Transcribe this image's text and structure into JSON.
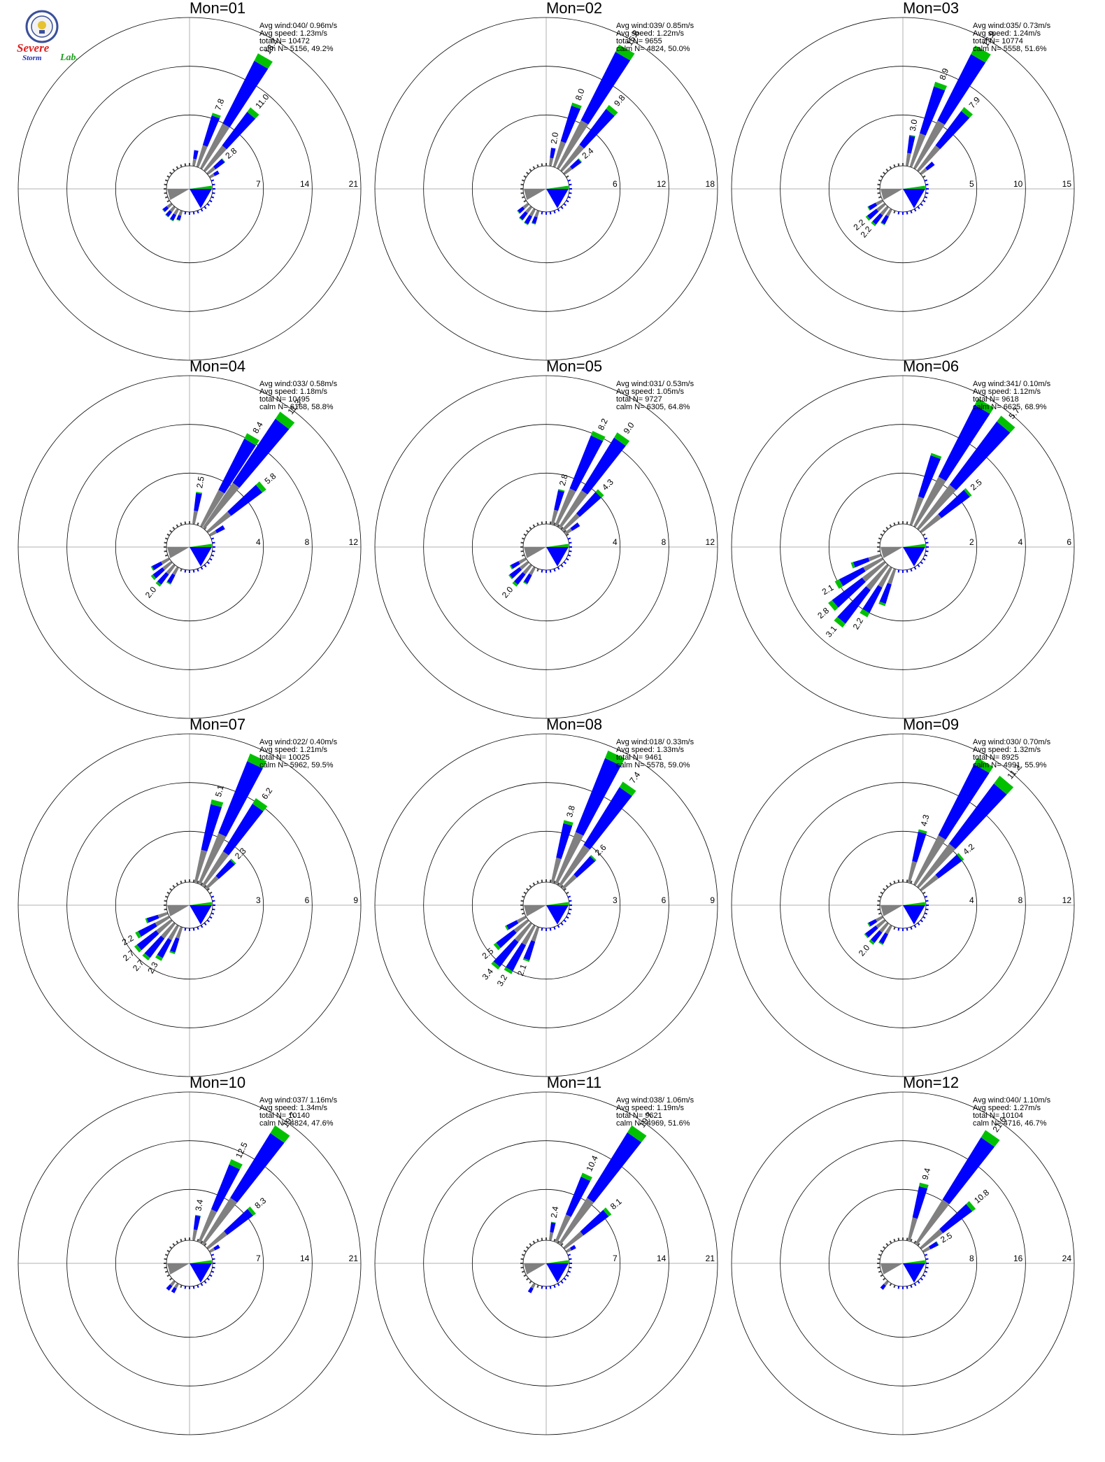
{
  "logo": {
    "line1": "Severe",
    "line2": "Storm",
    "line3": "Lab."
  },
  "colors": {
    "calm": "#808080",
    "low": "#0000ff",
    "mid": "#00c000",
    "high": "#ff0000",
    "ring": "#000000",
    "axis": "#b0b0b0"
  },
  "chart_data": [
    {
      "type": "wind-rose",
      "title": "Mon=01",
      "stats": [
        "Avg wind:040/ 0.96m/s",
        "Avg speed: 1.23m/s",
        "total N=     10472",
        "calm N=  5156,  49.2%"
      ],
      "ring_labels": [
        "7",
        "14",
        "21"
      ],
      "rmax": 21,
      "petals": [
        {
          "dir": 10,
          "value": 2.0,
          "green": 0.0
        },
        {
          "dir": 20,
          "value": 7.8,
          "green": 0.4,
          "label": "7.8"
        },
        {
          "dir": 30,
          "value": 18.2,
          "green": 1.2,
          "label": "18.2"
        },
        {
          "dir": 40,
          "value": 11.0,
          "green": 0.8,
          "label": "11.0"
        },
        {
          "dir": 50,
          "value": 2.8,
          "green": 0.1,
          "label": "2.8"
        },
        {
          "dir": 60,
          "value": 1.2,
          "green": 0.0
        },
        {
          "dir": 200,
          "value": 1.2,
          "green": 0.1
        },
        {
          "dir": 210,
          "value": 1.6,
          "green": 0.1
        },
        {
          "dir": 220,
          "value": 1.5,
          "green": 0.1
        },
        {
          "dir": 230,
          "value": 1.3,
          "green": 0.1
        }
      ]
    },
    {
      "type": "wind-rose",
      "title": "Mon=02",
      "stats": [
        "Avg wind:039/ 0.85m/s",
        "Avg speed: 1.22m/s",
        "total N=     9655",
        "calm N=  4824,  50.0%"
      ],
      "ring_labels": [
        "6",
        "12",
        "18"
      ],
      "rmax": 18,
      "petals": [
        {
          "dir": 10,
          "value": 2.0,
          "green": 0.0,
          "label": "2.0"
        },
        {
          "dir": 20,
          "value": 8.0,
          "green": 0.4,
          "label": "8.0"
        },
        {
          "dir": 30,
          "value": 16.8,
          "green": 1.0,
          "label": "16.8"
        },
        {
          "dir": 40,
          "value": 9.8,
          "green": 0.6,
          "label": "9.8"
        },
        {
          "dir": 50,
          "value": 2.4,
          "green": 0.1,
          "label": "2.4"
        },
        {
          "dir": 200,
          "value": 1.5,
          "green": 0.1
        },
        {
          "dir": 210,
          "value": 1.9,
          "green": 0.1
        },
        {
          "dir": 220,
          "value": 1.8,
          "green": 0.1
        },
        {
          "dir": 230,
          "value": 1.4,
          "green": 0.1
        }
      ]
    },
    {
      "type": "wind-rose",
      "title": "Mon=03",
      "stats": [
        "Avg wind:035/ 0.73m/s",
        "Avg speed: 1.24m/s",
        "total N=     10774",
        "calm N=  5558,  51.6%"
      ],
      "ring_labels": [
        "5",
        "10",
        "15"
      ],
      "rmax": 15,
      "petals": [
        {
          "dir": 10,
          "value": 3.0,
          "green": 0.1,
          "label": "3.0"
        },
        {
          "dir": 20,
          "value": 8.9,
          "green": 0.5,
          "label": "8.9"
        },
        {
          "dir": 30,
          "value": 13.9,
          "green": 1.0,
          "label": "13.9"
        },
        {
          "dir": 40,
          "value": 7.9,
          "green": 0.5,
          "label": "7.9"
        },
        {
          "dir": 50,
          "value": 1.5,
          "green": 0.0
        },
        {
          "dir": 210,
          "value": 1.6,
          "green": 0.1
        },
        {
          "dir": 220,
          "value": 2.2,
          "green": 0.2,
          "label": "2.2"
        },
        {
          "dir": 230,
          "value": 2.2,
          "green": 0.2,
          "label": "2.2"
        },
        {
          "dir": 240,
          "value": 1.5,
          "green": 0.1
        }
      ]
    },
    {
      "type": "wind-rose",
      "title": "Mon=04",
      "stats": [
        "Avg wind:033/ 0.58m/s",
        "Avg speed: 1.18m/s",
        "total N=     10495",
        "calm N=  6168,  58.8%"
      ],
      "ring_labels": [
        "4",
        "8",
        "12"
      ],
      "rmax": 12,
      "petals": [
        {
          "dir": 10,
          "value": 2.5,
          "green": 0.1,
          "label": "2.5"
        },
        {
          "dir": 30,
          "value": 8.4,
          "green": 0.5,
          "label": "8.4"
        },
        {
          "dir": 37,
          "value": 11.3,
          "green": 0.7,
          "label": "11.3"
        },
        {
          "dir": 50,
          "value": 5.8,
          "green": 0.4,
          "label": "5.8"
        },
        {
          "dir": 60,
          "value": 1.2,
          "green": 0.0
        },
        {
          "dir": 210,
          "value": 1.4,
          "green": 0.1
        },
        {
          "dir": 220,
          "value": 2.0,
          "green": 0.2,
          "label": "2.0"
        },
        {
          "dir": 230,
          "value": 1.9,
          "green": 0.2
        },
        {
          "dir": 240,
          "value": 1.5,
          "green": 0.1
        }
      ]
    },
    {
      "type": "wind-rose",
      "title": "Mon=05",
      "stats": [
        "Avg wind:031/ 0.53m/s",
        "Avg speed: 1.05m/s",
        "total N=     9727",
        "calm N=  6305,  64.8%"
      ],
      "ring_labels": [
        "4",
        "8",
        "12"
      ],
      "rmax": 12,
      "petals": [
        {
          "dir": 15,
          "value": 2.8,
          "green": 0.1,
          "label": "2.8"
        },
        {
          "dir": 25,
          "value": 8.2,
          "green": 0.4,
          "label": "8.2"
        },
        {
          "dir": 35,
          "value": 9.0,
          "green": 0.5,
          "label": "9.0"
        },
        {
          "dir": 45,
          "value": 4.3,
          "green": 0.3,
          "label": "4.3"
        },
        {
          "dir": 55,
          "value": 1.2,
          "green": 0.0
        },
        {
          "dir": 210,
          "value": 1.4,
          "green": 0.1
        },
        {
          "dir": 220,
          "value": 2.0,
          "green": 0.2,
          "label": "2.0"
        },
        {
          "dir": 230,
          "value": 1.8,
          "green": 0.1
        },
        {
          "dir": 240,
          "value": 1.3,
          "green": 0.1
        }
      ]
    },
    {
      "type": "wind-rose",
      "title": "Mon=06",
      "stats": [
        "Avg wind:341/ 0.10m/s",
        "Avg speed: 1.12m/s",
        "total N=     9618",
        "calm N=  6625,  68.9%"
      ],
      "ring_labels": [
        "2",
        "4",
        "6"
      ],
      "rmax": 6,
      "petals": [
        {
          "dir": 20,
          "value": 3.0,
          "green": 0.1
        },
        {
          "dir": 30,
          "value": 5.8,
          "green": 0.3
        },
        {
          "dir": 40,
          "value": 5.7,
          "green": 0.3,
          "label": "5.7"
        },
        {
          "dir": 50,
          "value": 2.5,
          "green": 0.1,
          "label": "2.5"
        },
        {
          "dir": 200,
          "value": 1.5,
          "green": 0.1
        },
        {
          "dir": 210,
          "value": 2.2,
          "green": 0.2,
          "label": "2.2"
        },
        {
          "dir": 220,
          "value": 3.1,
          "green": 0.2,
          "label": "3.1"
        },
        {
          "dir": 230,
          "value": 2.8,
          "green": 0.2,
          "label": "2.8"
        },
        {
          "dir": 240,
          "value": 2.1,
          "green": 0.2,
          "label": "2.1"
        },
        {
          "dir": 250,
          "value": 1.2,
          "green": 0.1
        }
      ]
    },
    {
      "type": "wind-rose",
      "title": "Mon=07",
      "stats": [
        "Avg wind:022/ 0.40m/s",
        "Avg speed: 1.21m/s",
        "total N=     10025",
        "calm N=  5962,  59.5%"
      ],
      "ring_labels": [
        "3",
        "6",
        "9"
      ],
      "rmax": 9,
      "petals": [
        {
          "dir": 15,
          "value": 5.1,
          "green": 0.3,
          "label": "5.1"
        },
        {
          "dir": 25,
          "value": 8.5,
          "green": 0.5
        },
        {
          "dir": 35,
          "value": 6.2,
          "green": 0.4,
          "label": "6.2"
        },
        {
          "dir": 45,
          "value": 2.3,
          "green": 0.1,
          "label": "2.3"
        },
        {
          "dir": 200,
          "value": 1.6,
          "green": 0.1
        },
        {
          "dir": 210,
          "value": 2.3,
          "green": 0.2,
          "label": "2.3"
        },
        {
          "dir": 220,
          "value": 2.7,
          "green": 0.2,
          "label": "2.7"
        },
        {
          "dir": 230,
          "value": 2.7,
          "green": 0.2,
          "label": "2.7"
        },
        {
          "dir": 240,
          "value": 2.2,
          "green": 0.2,
          "label": "2.2"
        },
        {
          "dir": 250,
          "value": 1.3,
          "green": 0.1
        }
      ]
    },
    {
      "type": "wind-rose",
      "title": "Mon=08",
      "stats": [
        "Avg wind:018/ 0.33m/s",
        "Avg speed: 1.33m/s",
        "total N=     9461",
        "calm N=  5578,  59.0%"
      ],
      "ring_labels": [
        "3",
        "6",
        "9"
      ],
      "rmax": 9,
      "petals": [
        {
          "dir": 15,
          "value": 3.8,
          "green": 0.2,
          "label": "3.8"
        },
        {
          "dir": 25,
          "value": 8.7,
          "green": 0.5
        },
        {
          "dir": 35,
          "value": 7.4,
          "green": 0.4,
          "label": "7.4"
        },
        {
          "dir": 45,
          "value": 2.6,
          "green": 0.1,
          "label": "2.6"
        },
        {
          "dir": 200,
          "value": 2.1,
          "green": 0.1,
          "label": "2.1"
        },
        {
          "dir": 210,
          "value": 3.2,
          "green": 0.2,
          "label": "3.2"
        },
        {
          "dir": 220,
          "value": 3.4,
          "green": 0.2,
          "label": "3.4"
        },
        {
          "dir": 230,
          "value": 2.5,
          "green": 0.2,
          "label": "2.5"
        },
        {
          "dir": 240,
          "value": 1.3,
          "green": 0.1
        }
      ]
    },
    {
      "type": "wind-rose",
      "title": "Mon=09",
      "stats": [
        "Avg wind:030/ 0.70m/s",
        "Avg speed: 1.32m/s",
        "total N=     8925",
        "calm N=  4991,  55.9%"
      ],
      "ring_labels": [
        "4",
        "8",
        "12"
      ],
      "rmax": 12,
      "petals": [
        {
          "dir": 15,
          "value": 4.3,
          "green": 0.2,
          "label": "4.3"
        },
        {
          "dir": 30,
          "value": 11.5,
          "green": 0.6
        },
        {
          "dir": 40,
          "value": 11.2,
          "green": 0.8,
          "label": "11.2"
        },
        {
          "dir": 50,
          "value": 4.2,
          "green": 0.2,
          "label": "4.2"
        },
        {
          "dir": 210,
          "value": 1.6,
          "green": 0.1
        },
        {
          "dir": 220,
          "value": 2.0,
          "green": 0.2,
          "label": "2.0"
        },
        {
          "dir": 230,
          "value": 1.9,
          "green": 0.1
        },
        {
          "dir": 240,
          "value": 1.2,
          "green": 0.1
        }
      ]
    },
    {
      "type": "wind-rose",
      "title": "Mon=10",
      "stats": [
        "Avg wind:037/ 1.16m/s",
        "Avg speed: 1.34m/s",
        "total N=     10140",
        "calm N=  4824,  47.6%"
      ],
      "ring_labels": [
        "7",
        "14",
        "21"
      ],
      "rmax": 21,
      "petals": [
        {
          "dir": 10,
          "value": 3.4,
          "green": 0.1,
          "label": "3.4"
        },
        {
          "dir": 25,
          "value": 12.5,
          "green": 0.8,
          "label": "12.5"
        },
        {
          "dir": 35,
          "value": 19.7,
          "green": 1.3,
          "label": "19.7"
        },
        {
          "dir": 50,
          "value": 8.3,
          "green": 0.5,
          "label": "8.3"
        },
        {
          "dir": 60,
          "value": 1.3,
          "green": 0.0
        },
        {
          "dir": 210,
          "value": 1.2,
          "green": 0.0
        },
        {
          "dir": 220,
          "value": 1.3,
          "green": 0.0
        }
      ]
    },
    {
      "type": "wind-rose",
      "title": "Mon=11",
      "stats": [
        "Avg wind:038/ 1.06m/s",
        "Avg speed: 1.19m/s",
        "total N=     9621",
        "calm N=  4969,  51.6%"
      ],
      "ring_labels": [
        "7",
        "14",
        "21"
      ],
      "rmax": 21,
      "petals": [
        {
          "dir": 10,
          "value": 2.4,
          "green": 0.1,
          "label": "2.4"
        },
        {
          "dir": 25,
          "value": 10.4,
          "green": 0.6,
          "label": "10.4"
        },
        {
          "dir": 35,
          "value": 19.7,
          "green": 1.2,
          "label": "19.7"
        },
        {
          "dir": 50,
          "value": 8.1,
          "green": 0.5,
          "label": "8.1"
        },
        {
          "dir": 60,
          "value": 1.2,
          "green": 0.0
        },
        {
          "dir": 210,
          "value": 1.2,
          "green": 0.0
        }
      ]
    },
    {
      "type": "wind-rose",
      "title": "Mon=12",
      "stats": [
        "Avg wind:040/ 1.10m/s",
        "Avg speed: 1.27m/s",
        "total N=     10104",
        "calm N=  4716,  46.7%"
      ],
      "ring_labels": [
        "8",
        "16",
        "24"
      ],
      "rmax": 24,
      "petals": [
        {
          "dir": 15,
          "value": 9.4,
          "green": 0.6,
          "label": "9.4"
        },
        {
          "dir": 35,
          "value": 21.6,
          "green": 1.4,
          "label": "21.6"
        },
        {
          "dir": 50,
          "value": 10.8,
          "green": 0.7,
          "label": "10.8"
        },
        {
          "dir": 60,
          "value": 2.5,
          "green": 0.1,
          "label": "2.5"
        },
        {
          "dir": 220,
          "value": 1.3,
          "green": 0.0
        }
      ]
    }
  ]
}
